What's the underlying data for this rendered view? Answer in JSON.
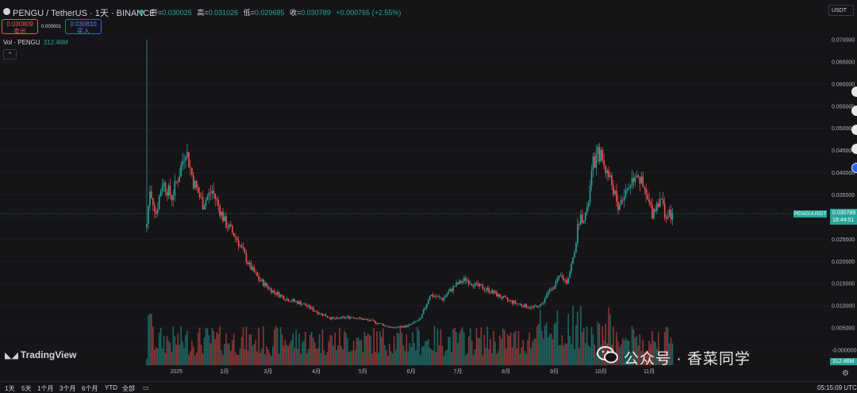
{
  "header": {
    "symbol": "PENGU / TetherUS · 1天 · BINANCE",
    "ohlc": [
      {
        "label": "开=",
        "value": "0.030025"
      },
      {
        "label": "高=",
        "value": "0.031026"
      },
      {
        "label": "低=",
        "value": "0.029685"
      },
      {
        "label": "收=",
        "value": "0.030789"
      },
      {
        "label": "",
        "value": "+0.000765 (+2.55%)"
      }
    ],
    "sell_price": "0.030809",
    "sell_label": "卖出",
    "spread": "0.000001",
    "buy_price": "0.030810",
    "buy_label": "买入",
    "vol_label": "Vol · PENGU",
    "vol_value": "312.46M",
    "collapse_icon": "^",
    "currency": "USDT"
  },
  "colors": {
    "up": "#26a69a",
    "down": "#ef5350",
    "background": "#151518",
    "grid": "#22222a"
  },
  "price_tag": {
    "symbol": "PENGUUSDT",
    "price": "0.030789",
    "countdown": "18:44:51"
  },
  "vol_tag": "312.46M",
  "brand": "TradingView",
  "watermark": "公众号 · 香菜同学",
  "bottom_bar": {
    "ranges": [
      "1天",
      "5天",
      "1个月",
      "3个月",
      "6个月",
      "YTD",
      "全部"
    ],
    "calendar_icon": "calendar-icon",
    "clock": "05:15:09 UTC"
  },
  "chart_data": {
    "type": "candlestick",
    "y_ticks": [
      "0.070000",
      "0.065000",
      "0.060000",
      "0.055000",
      "0.050000",
      "0.045000",
      "0.040000",
      "0.035000",
      "0.030000",
      "0.025000",
      "0.020000",
      "0.015000",
      "0.010000",
      "0.005000",
      "-0.000000"
    ],
    "x_ticks": [
      "2025",
      "2月",
      "3月",
      "4月",
      "5月",
      "6月",
      "7月",
      "8月",
      "9月",
      "10月",
      "11月"
    ],
    "ylim": [
      -0.0005,
      0.071
    ],
    "last_price": 0.030789,
    "close_path": [
      {
        "day": 0,
        "close": 0.0285
      },
      {
        "day": 2,
        "close": 0.0365
      },
      {
        "day": 6,
        "close": 0.031
      },
      {
        "day": 10,
        "close": 0.038
      },
      {
        "day": 16,
        "close": 0.0345
      },
      {
        "day": 21,
        "close": 0.04
      },
      {
        "day": 25,
        "close": 0.0455
      },
      {
        "day": 30,
        "close": 0.038
      },
      {
        "day": 36,
        "close": 0.033
      },
      {
        "day": 42,
        "close": 0.036
      },
      {
        "day": 50,
        "close": 0.029
      },
      {
        "day": 58,
        "close": 0.025
      },
      {
        "day": 66,
        "close": 0.019
      },
      {
        "day": 72,
        "close": 0.016
      },
      {
        "day": 80,
        "close": 0.0135
      },
      {
        "day": 90,
        "close": 0.0115
      },
      {
        "day": 100,
        "close": 0.0105
      },
      {
        "day": 110,
        "close": 0.0085
      },
      {
        "day": 120,
        "close": 0.007
      },
      {
        "day": 132,
        "close": 0.0075
      },
      {
        "day": 145,
        "close": 0.0065
      },
      {
        "day": 158,
        "close": 0.005
      },
      {
        "day": 168,
        "close": 0.0055
      },
      {
        "day": 176,
        "close": 0.007
      },
      {
        "day": 182,
        "close": 0.0125
      },
      {
        "day": 190,
        "close": 0.0115
      },
      {
        "day": 198,
        "close": 0.0145
      },
      {
        "day": 205,
        "close": 0.016
      },
      {
        "day": 212,
        "close": 0.0145
      },
      {
        "day": 220,
        "close": 0.0135
      },
      {
        "day": 230,
        "close": 0.0115
      },
      {
        "day": 238,
        "close": 0.0105
      },
      {
        "day": 248,
        "close": 0.0095
      },
      {
        "day": 254,
        "close": 0.0105
      },
      {
        "day": 260,
        "close": 0.014
      },
      {
        "day": 266,
        "close": 0.0165
      },
      {
        "day": 270,
        "close": 0.0155
      },
      {
        "day": 274,
        "close": 0.0205
      },
      {
        "day": 278,
        "close": 0.0295
      },
      {
        "day": 283,
        "close": 0.031
      },
      {
        "day": 287,
        "close": 0.042
      },
      {
        "day": 291,
        "close": 0.0445
      },
      {
        "day": 295,
        "close": 0.041
      },
      {
        "day": 299,
        "close": 0.0375
      },
      {
        "day": 303,
        "close": 0.0325
      },
      {
        "day": 309,
        "close": 0.0365
      },
      {
        "day": 315,
        "close": 0.0405
      },
      {
        "day": 320,
        "close": 0.0355
      },
      {
        "day": 325,
        "close": 0.031
      },
      {
        "day": 330,
        "close": 0.0345
      },
      {
        "day": 334,
        "close": 0.03
      },
      {
        "day": 338,
        "close": 0.0308
      }
    ]
  }
}
